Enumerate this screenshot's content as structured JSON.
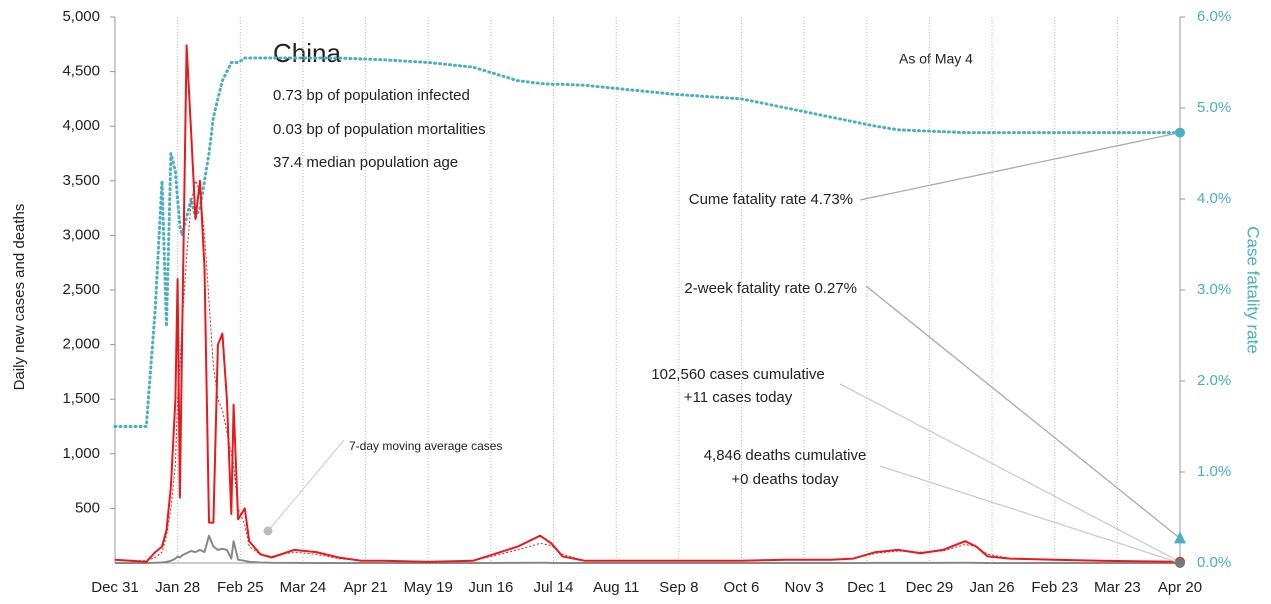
{
  "chart_data": {
    "type": "line",
    "title": "China",
    "notes": [
      "0.73 bp of population infected",
      "0.03 bp of population mortalities",
      "37.4 median population age"
    ],
    "annotation": "As of May 4",
    "ylabel": "Daily new cases and deaths",
    "y2label": "Case fatality rate",
    "x": [
      0,
      7,
      14,
      18,
      21,
      23,
      25,
      27,
      28,
      29,
      30,
      32,
      34,
      36,
      38,
      40,
      42,
      44,
      46,
      48,
      50,
      52,
      53,
      55,
      58,
      60,
      65,
      70,
      80,
      90,
      100,
      110,
      120,
      140,
      160,
      180,
      190,
      195,
      200,
      210,
      230,
      250,
      280,
      300,
      320,
      330,
      340,
      350,
      360,
      370,
      380,
      385,
      390,
      400,
      420,
      440,
      460,
      476
    ],
    "xlim": [
      0,
      476
    ],
    "xticks": [
      {
        "value": 0,
        "label": "Dec 31"
      },
      {
        "value": 28,
        "label": "Jan 28"
      },
      {
        "value": 56,
        "label": "Feb 25"
      },
      {
        "value": 84,
        "label": "Mar 24"
      },
      {
        "value": 112,
        "label": "Apr 21"
      },
      {
        "value": 140,
        "label": "May 19"
      },
      {
        "value": 168,
        "label": "Jun 16"
      },
      {
        "value": 196,
        "label": "Jul 14"
      },
      {
        "value": 224,
        "label": "Aug 11"
      },
      {
        "value": 252,
        "label": "Sep 8"
      },
      {
        "value": 280,
        "label": "Oct 6"
      },
      {
        "value": 308,
        "label": "Nov 3"
      },
      {
        "value": 336,
        "label": "Dec 1"
      },
      {
        "value": 364,
        "label": "Dec 29"
      },
      {
        "value": 392,
        "label": "Jan 26"
      },
      {
        "value": 420,
        "label": "Feb 23"
      },
      {
        "value": 448,
        "label": "Mar 23"
      },
      {
        "value": 476,
        "label": "Apr 20"
      }
    ],
    "ylim": [
      0,
      5000
    ],
    "yticks": [
      500,
      {
        "value": 1000,
        "label": "1,000"
      },
      {
        "value": 1500,
        "label": "1,500"
      },
      {
        "value": 2000,
        "label": "2,000"
      },
      {
        "value": 2500,
        "label": "2,500"
      },
      {
        "value": 3000,
        "label": "3,000"
      },
      {
        "value": 3500,
        "label": "3,500"
      },
      {
        "value": 4000,
        "label": "4,000"
      },
      {
        "value": 4500,
        "label": "4,500"
      },
      {
        "value": 5000,
        "label": "5,000"
      }
    ],
    "y2lim": [
      0,
      6
    ],
    "y2ticks": [
      {
        "value": 0,
        "label": "0.0%"
      },
      {
        "value": 1,
        "label": "1.0%"
      },
      {
        "value": 2,
        "label": "2.0%"
      },
      {
        "value": 3,
        "label": "3.0%"
      },
      {
        "value": 4,
        "label": "4.0%"
      },
      {
        "value": 5,
        "label": "5.0%"
      },
      {
        "value": 6,
        "label": "6.0%"
      }
    ],
    "grid": true,
    "series": [
      {
        "color": "#4aafc0",
        "style": "dotted",
        "axis": "y2",
        "values": [
          1.5,
          1.5,
          1.5,
          2.8,
          4.2,
          2.6,
          4.5,
          4.3,
          4.0,
          3.7,
          3.6,
          3.8,
          4.0,
          3.8,
          3.9,
          4.2,
          4.5,
          4.9,
          5.1,
          5.3,
          5.4,
          5.5,
          5.5,
          5.5,
          5.55,
          5.55,
          5.55,
          5.55,
          5.55,
          5.55,
          5.55,
          5.54,
          5.53,
          5.5,
          5.45,
          5.3,
          5.27,
          5.26,
          5.26,
          5.25,
          5.2,
          5.15,
          5.1,
          5.0,
          4.9,
          4.85,
          4.8,
          4.76,
          4.75,
          4.74,
          4.73,
          4.73,
          4.73,
          4.73,
          4.73,
          4.73,
          4.73,
          4.73
        ]
      },
      {
        "name": "7-day moving average cases",
        "color": "#e8191d",
        "style": "thin-dotted",
        "values": [
          30,
          20,
          20,
          50,
          100,
          250,
          500,
          900,
          1500,
          1800,
          2200,
          2800,
          3300,
          3500,
          3400,
          3000,
          2400,
          1800,
          1500,
          1400,
          1200,
          1000,
          900,
          500,
          350,
          150,
          80,
          60,
          100,
          80,
          40,
          20,
          20,
          15,
          20,
          120,
          180,
          160,
          80,
          20,
          20,
          20,
          20,
          30,
          30,
          40,
          90,
          110,
          100,
          110,
          170,
          150,
          80,
          40,
          30,
          20,
          15,
          12
        ]
      },
      {
        "color": "#888888",
        "style": "solid",
        "values": [
          0,
          0,
          0,
          3,
          5,
          10,
          20,
          40,
          60,
          50,
          70,
          90,
          110,
          100,
          120,
          100,
          250,
          150,
          120,
          130,
          120,
          40,
          200,
          30,
          20,
          10,
          5,
          2,
          1,
          0,
          0,
          0,
          0,
          0,
          0,
          1,
          2,
          1,
          0,
          0,
          0,
          0,
          0,
          0,
          0,
          0,
          1,
          1,
          1,
          1,
          2,
          1,
          0,
          0,
          0,
          0,
          0,
          0
        ]
      },
      {
        "color": "#e8191d",
        "style": "solid",
        "values": [
          30,
          20,
          10,
          100,
          150,
          300,
          700,
          1500,
          2600,
          600,
          2050,
          4740,
          3950,
          3150,
          3500,
          2700,
          370,
          370,
          2000,
          2100,
          1500,
          450,
          1450,
          400,
          500,
          200,
          80,
          50,
          120,
          100,
          50,
          20,
          20,
          10,
          20,
          150,
          250,
          180,
          60,
          20,
          20,
          20,
          20,
          30,
          30,
          40,
          100,
          120,
          90,
          120,
          200,
          150,
          60,
          40,
          30,
          20,
          15,
          11
        ]
      }
    ],
    "callouts": [
      {
        "lines": [
          "Cume fatality rate 4.73%"
        ],
        "value": 4.73,
        "axis": "y2",
        "marker": "circle",
        "color": "#4aafc0"
      },
      {
        "lines": [
          "2-week fatality rate 0.27%"
        ],
        "value": 0.27,
        "axis": "y2",
        "marker": "triangle",
        "color": "#4aafc0"
      },
      {
        "lines": [
          "102,560 cases cumulative",
          "+11 cases today"
        ],
        "value": 11,
        "axis": "y",
        "marker": "circle",
        "color": "#c0392b"
      },
      {
        "lines": [
          "4,846 deaths cumulative",
          "+0 deaths today"
        ],
        "value": 0,
        "axis": "y",
        "marker": "circle",
        "color": "#777777"
      }
    ]
  }
}
